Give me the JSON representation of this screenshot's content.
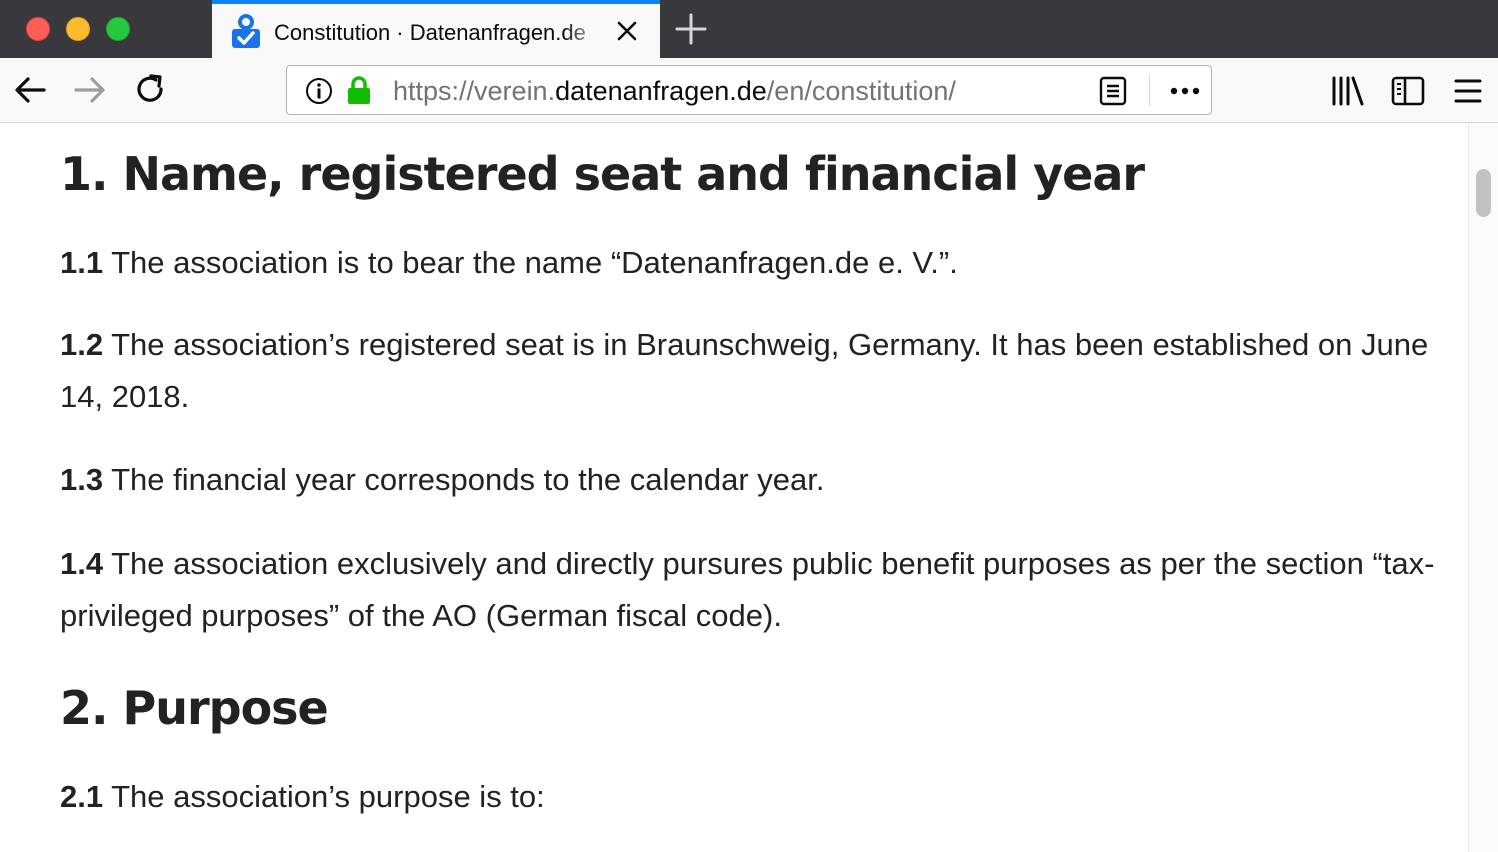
{
  "browser": {
    "window_controls": [
      "close",
      "minimize",
      "maximize"
    ],
    "tab": {
      "title": "Constitution · Datenanfragen.de",
      "favicon": "datenanfragen-logo-icon",
      "accent": "#0a84ff"
    },
    "new_tab_icon": "plus-icon",
    "nav": {
      "back_icon": "back-arrow-icon",
      "forward_icon": "forward-arrow-icon",
      "reload_icon": "reload-icon"
    },
    "urlbar": {
      "url_prefix": "https://verein.",
      "url_host": "datenanfragen.de",
      "url_path": "/en/constitution/",
      "info_icon": "info-icon",
      "lock_icon": "lock-icon",
      "lock_color": "#12bc00",
      "reader_icon": "reader-view-icon",
      "more_icon": "more-actions-icon"
    },
    "toolbar_icons": [
      "library-icon",
      "sidebar-icon",
      "menu-icon"
    ]
  },
  "content": {
    "section1": {
      "heading": "1. Name, registered seat and financial year",
      "paragraphs": [
        {
          "num": "1.1",
          "text": "The association is to bear the name “Datenanfragen.de e. V.”."
        },
        {
          "num": "1.2",
          "text": "The association’s registered seat is in Braunschweig, Germany. It has been established on June 14, 2018."
        },
        {
          "num": "1.3",
          "text": "The financial year corresponds to the calendar year."
        },
        {
          "num": "1.4",
          "text": "The association exclusively and directly pursures public benefit purposes as per the section “tax-privileged purposes” of the AO (German fiscal code)."
        }
      ]
    },
    "section2": {
      "heading": "2. Purpose",
      "paragraphs": [
        {
          "num": "2.1",
          "text": "The association’s purpose is to:"
        }
      ]
    }
  }
}
